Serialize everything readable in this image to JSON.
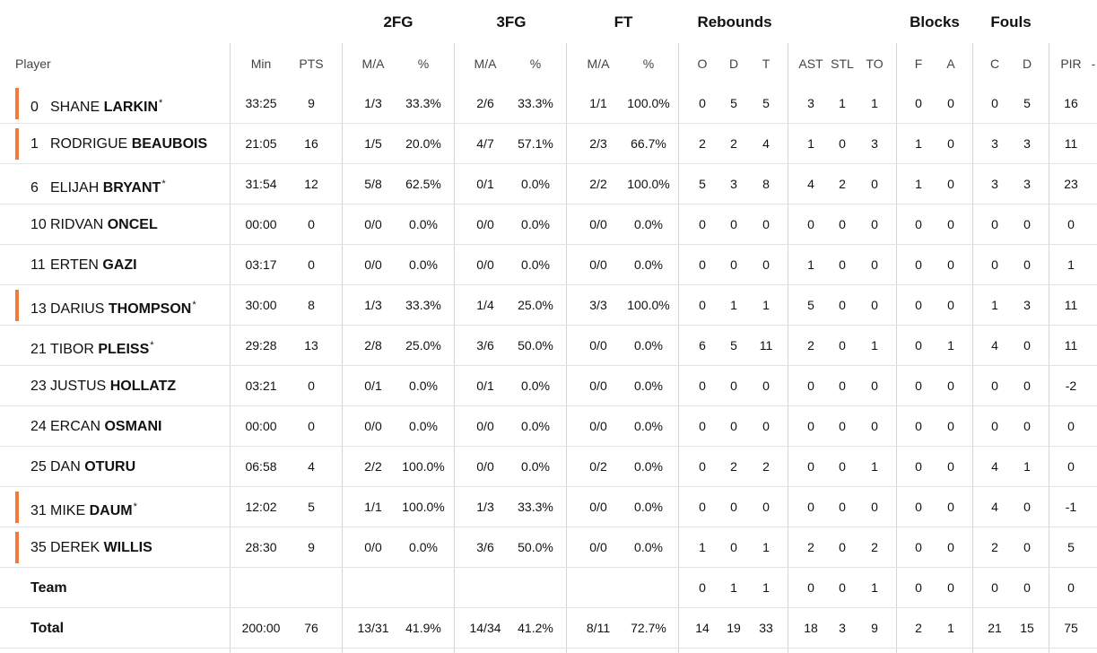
{
  "group_headers": {
    "fg2": "2FG",
    "fg3": "3FG",
    "ft": "FT",
    "rebounds": "Rebounds",
    "blocks": "Blocks",
    "fouls": "Fouls"
  },
  "column_headers": {
    "player": "Player",
    "min": "Min",
    "pts": "PTS",
    "fg2_ma": "M/A",
    "fg2_pct": "%",
    "fg3_ma": "M/A",
    "fg3_pct": "%",
    "ft_ma": "M/A",
    "ft_pct": "%",
    "reb_o": "O",
    "reb_d": "D",
    "reb_t": "T",
    "ast": "AST",
    "stl": "STL",
    "to": "TO",
    "blk_f": "F",
    "blk_a": "A",
    "foul_c": "C",
    "foul_d": "D",
    "pir": "PIR",
    "sort": "-"
  },
  "accent_color": "#f47a3b",
  "players": [
    {
      "num": "0",
      "first": "SHANE",
      "last": "LARKIN",
      "star": "*",
      "starter": true,
      "min": "33:25",
      "pts": "9",
      "fg2_ma": "1/3",
      "fg2_pct": "33.3%",
      "fg3_ma": "2/6",
      "fg3_pct": "33.3%",
      "ft_ma": "1/1",
      "ft_pct": "100.0%",
      "reb_o": "0",
      "reb_d": "5",
      "reb_t": "5",
      "ast": "3",
      "stl": "1",
      "to": "1",
      "blk_f": "0",
      "blk_a": "0",
      "foul_c": "0",
      "foul_d": "5",
      "pir": "16"
    },
    {
      "num": "1",
      "first": "RODRIGUE",
      "last": "BEAUBOIS",
      "star": "",
      "starter": true,
      "min": "21:05",
      "pts": "16",
      "fg2_ma": "1/5",
      "fg2_pct": "20.0%",
      "fg3_ma": "4/7",
      "fg3_pct": "57.1%",
      "ft_ma": "2/3",
      "ft_pct": "66.7%",
      "reb_o": "2",
      "reb_d": "2",
      "reb_t": "4",
      "ast": "1",
      "stl": "0",
      "to": "3",
      "blk_f": "1",
      "blk_a": "0",
      "foul_c": "3",
      "foul_d": "3",
      "pir": "11"
    },
    {
      "num": "6",
      "first": "ELIJAH",
      "last": "BRYANT",
      "star": "*",
      "starter": false,
      "min": "31:54",
      "pts": "12",
      "fg2_ma": "5/8",
      "fg2_pct": "62.5%",
      "fg3_ma": "0/1",
      "fg3_pct": "0.0%",
      "ft_ma": "2/2",
      "ft_pct": "100.0%",
      "reb_o": "5",
      "reb_d": "3",
      "reb_t": "8",
      "ast": "4",
      "stl": "2",
      "to": "0",
      "blk_f": "1",
      "blk_a": "0",
      "foul_c": "3",
      "foul_d": "3",
      "pir": "23"
    },
    {
      "num": "10",
      "first": "RIDVAN",
      "last": "ONCEL",
      "star": "",
      "starter": false,
      "min": "00:00",
      "pts": "0",
      "fg2_ma": "0/0",
      "fg2_pct": "0.0%",
      "fg3_ma": "0/0",
      "fg3_pct": "0.0%",
      "ft_ma": "0/0",
      "ft_pct": "0.0%",
      "reb_o": "0",
      "reb_d": "0",
      "reb_t": "0",
      "ast": "0",
      "stl": "0",
      "to": "0",
      "blk_f": "0",
      "blk_a": "0",
      "foul_c": "0",
      "foul_d": "0",
      "pir": "0"
    },
    {
      "num": "11",
      "first": "ERTEN",
      "last": "GAZI",
      "star": "",
      "starter": false,
      "min": "03:17",
      "pts": "0",
      "fg2_ma": "0/0",
      "fg2_pct": "0.0%",
      "fg3_ma": "0/0",
      "fg3_pct": "0.0%",
      "ft_ma": "0/0",
      "ft_pct": "0.0%",
      "reb_o": "0",
      "reb_d": "0",
      "reb_t": "0",
      "ast": "1",
      "stl": "0",
      "to": "0",
      "blk_f": "0",
      "blk_a": "0",
      "foul_c": "0",
      "foul_d": "0",
      "pir": "1"
    },
    {
      "num": "13",
      "first": "DARIUS",
      "last": "THOMPSON",
      "star": "*",
      "starter": true,
      "min": "30:00",
      "pts": "8",
      "fg2_ma": "1/3",
      "fg2_pct": "33.3%",
      "fg3_ma": "1/4",
      "fg3_pct": "25.0%",
      "ft_ma": "3/3",
      "ft_pct": "100.0%",
      "reb_o": "0",
      "reb_d": "1",
      "reb_t": "1",
      "ast": "5",
      "stl": "0",
      "to": "0",
      "blk_f": "0",
      "blk_a": "0",
      "foul_c": "1",
      "foul_d": "3",
      "pir": "11"
    },
    {
      "num": "21",
      "first": "TIBOR",
      "last": "PLEISS",
      "star": "*",
      "starter": false,
      "min": "29:28",
      "pts": "13",
      "fg2_ma": "2/8",
      "fg2_pct": "25.0%",
      "fg3_ma": "3/6",
      "fg3_pct": "50.0%",
      "ft_ma": "0/0",
      "ft_pct": "0.0%",
      "reb_o": "6",
      "reb_d": "5",
      "reb_t": "11",
      "ast": "2",
      "stl": "0",
      "to": "1",
      "blk_f": "0",
      "blk_a": "1",
      "foul_c": "4",
      "foul_d": "0",
      "pir": "11"
    },
    {
      "num": "23",
      "first": "JUSTUS",
      "last": "HOLLATZ",
      "star": "",
      "starter": false,
      "min": "03:21",
      "pts": "0",
      "fg2_ma": "0/1",
      "fg2_pct": "0.0%",
      "fg3_ma": "0/1",
      "fg3_pct": "0.0%",
      "ft_ma": "0/0",
      "ft_pct": "0.0%",
      "reb_o": "0",
      "reb_d": "0",
      "reb_t": "0",
      "ast": "0",
      "stl": "0",
      "to": "0",
      "blk_f": "0",
      "blk_a": "0",
      "foul_c": "0",
      "foul_d": "0",
      "pir": "-2"
    },
    {
      "num": "24",
      "first": "ERCAN",
      "last": "OSMANI",
      "star": "",
      "starter": false,
      "min": "00:00",
      "pts": "0",
      "fg2_ma": "0/0",
      "fg2_pct": "0.0%",
      "fg3_ma": "0/0",
      "fg3_pct": "0.0%",
      "ft_ma": "0/0",
      "ft_pct": "0.0%",
      "reb_o": "0",
      "reb_d": "0",
      "reb_t": "0",
      "ast": "0",
      "stl": "0",
      "to": "0",
      "blk_f": "0",
      "blk_a": "0",
      "foul_c": "0",
      "foul_d": "0",
      "pir": "0"
    },
    {
      "num": "25",
      "first": "DAN",
      "last": "OTURU",
      "star": "",
      "starter": false,
      "min": "06:58",
      "pts": "4",
      "fg2_ma": "2/2",
      "fg2_pct": "100.0%",
      "fg3_ma": "0/0",
      "fg3_pct": "0.0%",
      "ft_ma": "0/2",
      "ft_pct": "0.0%",
      "reb_o": "0",
      "reb_d": "2",
      "reb_t": "2",
      "ast": "0",
      "stl": "0",
      "to": "1",
      "blk_f": "0",
      "blk_a": "0",
      "foul_c": "4",
      "foul_d": "1",
      "pir": "0"
    },
    {
      "num": "31",
      "first": "MIKE",
      "last": "DAUM",
      "star": "*",
      "starter": true,
      "min": "12:02",
      "pts": "5",
      "fg2_ma": "1/1",
      "fg2_pct": "100.0%",
      "fg3_ma": "1/3",
      "fg3_pct": "33.3%",
      "ft_ma": "0/0",
      "ft_pct": "0.0%",
      "reb_o": "0",
      "reb_d": "0",
      "reb_t": "0",
      "ast": "0",
      "stl": "0",
      "to": "0",
      "blk_f": "0",
      "blk_a": "0",
      "foul_c": "4",
      "foul_d": "0",
      "pir": "-1"
    },
    {
      "num": "35",
      "first": "DEREK",
      "last": "WILLIS",
      "star": "",
      "starter": true,
      "min": "28:30",
      "pts": "9",
      "fg2_ma": "0/0",
      "fg2_pct": "0.0%",
      "fg3_ma": "3/6",
      "fg3_pct": "50.0%",
      "ft_ma": "0/0",
      "ft_pct": "0.0%",
      "reb_o": "1",
      "reb_d": "0",
      "reb_t": "1",
      "ast": "2",
      "stl": "0",
      "to": "2",
      "blk_f": "0",
      "blk_a": "0",
      "foul_c": "2",
      "foul_d": "0",
      "pir": "5"
    }
  ],
  "team": {
    "label": "Team",
    "min": "",
    "pts": "",
    "fg2_ma": "",
    "fg2_pct": "",
    "fg3_ma": "",
    "fg3_pct": "",
    "ft_ma": "",
    "ft_pct": "",
    "reb_o": "0",
    "reb_d": "1",
    "reb_t": "1",
    "ast": "0",
    "stl": "0",
    "to": "1",
    "blk_f": "0",
    "blk_a": "0",
    "foul_c": "0",
    "foul_d": "0",
    "pir": "0"
  },
  "total": {
    "label": "Total",
    "min": "200:00",
    "pts": "76",
    "fg2_ma": "13/31",
    "fg2_pct": "41.9%",
    "fg3_ma": "14/34",
    "fg3_pct": "41.2%",
    "ft_ma": "8/11",
    "ft_pct": "72.7%",
    "reb_o": "14",
    "reb_d": "19",
    "reb_t": "33",
    "ast": "18",
    "stl": "3",
    "to": "9",
    "blk_f": "2",
    "blk_a": "1",
    "foul_c": "21",
    "foul_d": "15",
    "pir": "75"
  }
}
